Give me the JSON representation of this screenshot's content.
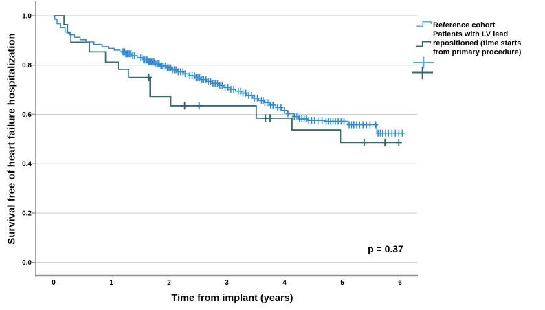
{
  "figure": {
    "p_value": "p = 0.37"
  },
  "legend": {
    "position": "top-right",
    "items": [
      {
        "label": "Reference cohort",
        "symbol": "step-line",
        "color": "#58A8E6"
      },
      {
        "label": "Patients with LV lead repositioned (time starts from primary procedure)",
        "symbol": "step-line",
        "color": "#2F6C72"
      },
      {
        "label": "",
        "symbol": "censor-plus",
        "color": "#58A8E6"
      },
      {
        "label": "",
        "symbol": "censor-plus",
        "color": "#2F6C72"
      }
    ]
  },
  "chart_data": {
    "type": "line",
    "subtype": "kaplan-meier-step",
    "title": "",
    "xlabel": "Time from implant (years)",
    "ylabel": "Survival free of heart failure hospitalization",
    "xlim": [
      -0.32,
      6.3
    ],
    "ylim": [
      0.0,
      1.0
    ],
    "grid": true,
    "legend_position": "top-right",
    "annotations": [
      {
        "text": "p = 0.37",
        "x": 5.75,
        "y": 0.05
      }
    ],
    "colors": {
      "grid": "#CBCBCB",
      "axis": "#8E8E8E",
      "text": "#000000"
    },
    "x_ticks": [
      {
        "v": 0,
        "label": "0"
      },
      {
        "v": 1,
        "label": "1"
      },
      {
        "v": 2,
        "label": "2"
      },
      {
        "v": 3,
        "label": "3"
      },
      {
        "v": 4,
        "label": "4"
      },
      {
        "v": 5,
        "label": "5"
      },
      {
        "v": 6,
        "label": "6"
      }
    ],
    "y_ticks": [
      {
        "v": 1.0,
        "label": "1.0"
      },
      {
        "v": 0.8,
        "label": "0.8"
      },
      {
        "v": 0.6,
        "label": "0.6"
      },
      {
        "v": 0.4,
        "label": "0.4"
      },
      {
        "v": 0.2,
        "label": "0.2"
      },
      {
        "v": 0.0,
        "label": "0.0"
      }
    ],
    "series": [
      {
        "name": "Reference cohort",
        "color": "#2E8BD9",
        "censor_color": "#2E8BD9",
        "line_width": 1.5,
        "end_time": 6.06,
        "steps": [
          [
            0.0,
            1.0
          ],
          [
            0.02,
            0.986
          ],
          [
            0.06,
            0.968
          ],
          [
            0.12,
            0.952
          ],
          [
            0.2,
            0.934
          ],
          [
            0.28,
            0.923
          ],
          [
            0.36,
            0.913
          ],
          [
            0.46,
            0.903
          ],
          [
            0.56,
            0.894
          ],
          [
            0.7,
            0.884
          ],
          [
            0.84,
            0.875
          ],
          [
            0.95,
            0.868
          ],
          [
            1.05,
            0.861
          ],
          [
            1.15,
            0.854
          ],
          [
            1.25,
            0.846
          ],
          [
            1.35,
            0.838
          ],
          [
            1.45,
            0.83
          ],
          [
            1.55,
            0.821
          ],
          [
            1.65,
            0.813
          ],
          [
            1.75,
            0.805
          ],
          [
            1.85,
            0.797
          ],
          [
            1.95,
            0.789
          ],
          [
            2.05,
            0.781
          ],
          [
            2.15,
            0.773
          ],
          [
            2.25,
            0.765
          ],
          [
            2.35,
            0.757
          ],
          [
            2.45,
            0.749
          ],
          [
            2.55,
            0.741
          ],
          [
            2.65,
            0.734
          ],
          [
            2.75,
            0.726
          ],
          [
            2.85,
            0.718
          ],
          [
            2.95,
            0.71
          ],
          [
            3.05,
            0.702
          ],
          [
            3.15,
            0.694
          ],
          [
            3.25,
            0.686
          ],
          [
            3.35,
            0.677
          ],
          [
            3.45,
            0.666
          ],
          [
            3.55,
            0.656
          ],
          [
            3.65,
            0.648
          ],
          [
            3.75,
            0.638
          ],
          [
            3.85,
            0.628
          ],
          [
            3.95,
            0.616
          ],
          [
            4.05,
            0.603
          ],
          [
            4.15,
            0.591
          ],
          [
            4.25,
            0.582
          ],
          [
            4.4,
            0.576
          ],
          [
            4.7,
            0.572
          ],
          [
            5.1,
            0.558
          ],
          [
            5.6,
            0.524
          ]
        ],
        "censor_times": [
          1.19,
          1.21,
          1.23,
          1.25,
          1.27,
          1.28,
          1.3,
          1.32,
          1.34,
          1.37,
          1.4,
          1.5,
          1.53,
          1.56,
          1.58,
          1.61,
          1.63,
          1.65,
          1.67,
          1.7,
          1.72,
          1.74,
          1.76,
          1.79,
          1.81,
          1.83,
          1.86,
          1.88,
          1.91,
          1.94,
          1.97,
          2.0,
          2.03,
          2.06,
          2.09,
          2.12,
          2.16,
          2.2,
          2.24,
          2.28,
          2.36,
          2.4,
          2.44,
          2.47,
          2.5,
          2.53,
          2.57,
          2.6,
          2.64,
          2.68,
          2.72,
          2.76,
          2.8,
          2.84,
          2.88,
          2.92,
          2.97,
          3.02,
          3.07,
          3.12,
          3.2,
          3.24,
          3.28,
          3.33,
          3.38,
          3.43,
          3.48,
          3.53,
          3.6,
          3.63,
          3.66,
          3.7,
          3.73,
          3.76,
          3.8,
          3.88,
          3.94,
          4.0,
          4.06,
          4.17,
          4.2,
          4.23,
          4.26,
          4.3,
          4.34,
          4.38,
          4.42,
          4.47,
          4.52,
          4.58,
          4.65,
          4.72,
          4.76,
          4.8,
          4.84,
          4.88,
          4.93,
          4.98,
          5.03,
          5.12,
          5.16,
          5.2,
          5.25,
          5.3,
          5.36,
          5.42,
          5.48,
          5.58,
          5.62,
          5.66,
          5.7,
          5.75,
          5.8,
          5.86,
          5.92,
          5.98,
          6.04
        ]
      },
      {
        "name": "Patients with LV lead repositioned (time starts from primary procedure)",
        "color": "#336F75",
        "censor_color": "#2A666D",
        "line_width": 1.8,
        "end_time": 6.03,
        "steps": [
          [
            0.0,
            1.0
          ],
          [
            0.18,
            0.964
          ],
          [
            0.24,
            0.931
          ],
          [
            0.3,
            0.893
          ],
          [
            0.62,
            0.854
          ],
          [
            0.9,
            0.812
          ],
          [
            1.12,
            0.783
          ],
          [
            1.3,
            0.75
          ],
          [
            1.67,
            0.673
          ],
          [
            2.03,
            0.635
          ],
          [
            3.51,
            0.585
          ],
          [
            4.13,
            0.537
          ],
          [
            4.97,
            0.486
          ]
        ],
        "censor_times": [
          1.65,
          2.27,
          2.52,
          3.67,
          3.75,
          5.38,
          5.74,
          5.98
        ]
      }
    ]
  }
}
